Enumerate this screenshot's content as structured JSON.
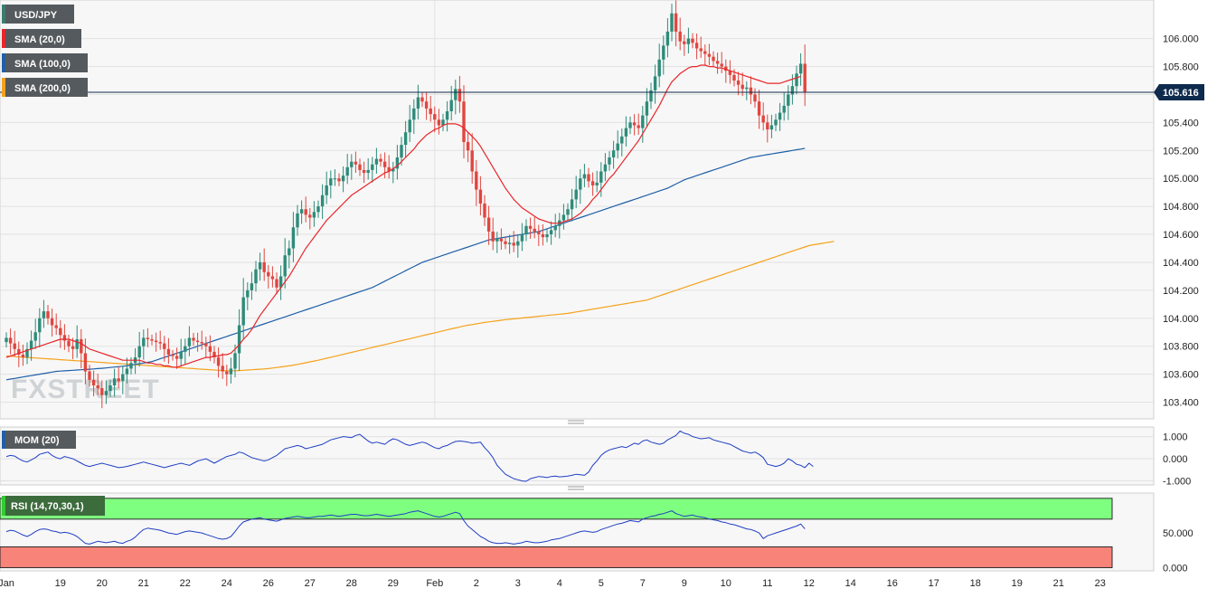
{
  "chart_data": {
    "type": "candlestick",
    "symbol": "USD/JPY",
    "watermark": "FXSTREET",
    "current_price": 105.616,
    "price_axis": {
      "ylim": [
        103.3,
        106.25
      ],
      "ticks": [
        "106.000",
        "105.800",
        "105.600",
        "105.400",
        "105.200",
        "105.000",
        "104.800",
        "104.600",
        "104.400",
        "104.200",
        "104.000",
        "103.800",
        "103.600",
        "103.400"
      ],
      "tick_values": [
        106.0,
        105.8,
        105.6,
        105.4,
        105.2,
        105.0,
        104.8,
        104.6,
        104.4,
        104.2,
        104.0,
        103.8,
        103.6,
        103.4
      ]
    },
    "x_axis": {
      "labels": [
        "Jan",
        "19",
        "20",
        "21",
        "22",
        "24",
        "26",
        "27",
        "28",
        "29",
        "Feb",
        "2",
        "3",
        "4",
        "5",
        "7",
        "9",
        "10",
        "11",
        "12",
        "14",
        "16",
        "17",
        "18",
        "19",
        "21",
        "23"
      ],
      "label_bars": [
        0,
        13,
        23,
        33,
        43,
        53,
        63,
        73,
        83,
        93,
        103,
        113,
        123,
        133,
        143,
        153,
        163,
        173,
        183,
        193,
        203,
        213,
        223,
        233,
        243,
        253,
        263
      ]
    },
    "legend": [
      {
        "label": "USD/JPY",
        "color": "#3a7d6e"
      },
      {
        "label": "SMA (20,0)",
        "color": "#e8262a"
      },
      {
        "label": "SMA (100,0)",
        "color": "#1f5fa8"
      },
      {
        "label": "SMA (200,0)",
        "color": "#f5a21b"
      }
    ],
    "colors": {
      "up": "#2e8b7a",
      "down": "#e0463f",
      "sma20": "#e8262a",
      "sma100": "#1f5fa8",
      "sma200": "#f5a21b",
      "last_line": "#0e2a4d"
    },
    "closes": [
      103.86,
      103.82,
      103.78,
      103.74,
      103.72,
      103.78,
      103.84,
      103.9,
      104.0,
      104.05,
      104.0,
      103.95,
      103.93,
      103.88,
      103.84,
      103.8,
      103.78,
      103.85,
      103.75,
      103.62,
      103.56,
      103.52,
      103.5,
      103.45,
      103.48,
      103.52,
      103.57,
      103.55,
      103.6,
      103.64,
      103.68,
      103.72,
      103.8,
      103.86,
      103.85,
      103.84,
      103.83,
      103.82,
      103.78,
      103.74,
      103.73,
      103.71,
      103.76,
      103.8,
      103.86,
      103.84,
      103.83,
      103.82,
      103.8,
      103.76,
      103.72,
      103.66,
      103.62,
      103.6,
      103.64,
      103.75,
      103.95,
      104.15,
      104.2,
      104.25,
      104.35,
      104.4,
      104.33,
      104.3,
      104.28,
      104.22,
      104.3,
      104.45,
      104.5,
      104.65,
      104.75,
      104.78,
      104.74,
      104.72,
      104.76,
      104.8,
      104.88,
      104.95,
      105.0,
      105.0,
      104.98,
      105.02,
      105.08,
      105.12,
      105.1,
      105.06,
      105.04,
      105.06,
      105.1,
      105.14,
      105.12,
      105.08,
      105.05,
      105.07,
      105.15,
      105.24,
      105.33,
      105.42,
      105.5,
      105.58,
      105.55,
      105.5,
      105.46,
      105.42,
      105.38,
      105.42,
      105.48,
      105.56,
      105.64,
      105.55,
      105.26,
      105.2,
      105.05,
      104.92,
      104.82,
      104.72,
      104.62,
      104.55,
      104.57,
      104.55,
      104.53,
      104.54,
      104.52,
      104.55,
      104.6,
      104.66,
      104.64,
      104.62,
      104.6,
      104.58,
      104.6,
      104.63,
      104.66,
      104.7,
      104.74,
      104.78,
      104.85,
      104.92,
      105.0,
      105.03,
      104.98,
      104.95,
      104.97,
      105.05,
      105.1,
      105.15,
      105.2,
      105.25,
      105.3,
      105.36,
      105.4,
      105.38,
      105.36,
      105.45,
      105.55,
      105.63,
      105.73,
      105.85,
      105.95,
      106.05,
      106.18,
      106.05,
      105.98,
      105.96,
      106.0,
      105.97,
      105.93,
      105.91,
      105.89,
      105.87,
      105.84,
      105.82,
      105.8,
      105.77,
      105.74,
      105.7,
      105.67,
      105.64,
      105.65,
      105.6,
      105.55,
      105.45,
      105.4,
      105.35,
      105.38,
      105.42,
      105.47,
      105.52,
      105.6,
      105.66,
      105.75,
      105.82,
      105.62
    ],
    "sma20": [
      103.72,
      103.73,
      103.74,
      103.75,
      103.76,
      103.77,
      103.78,
      103.79,
      103.8,
      103.81,
      103.82,
      103.83,
      103.84,
      103.85,
      103.85,
      103.85,
      103.84,
      103.83,
      103.82,
      103.8,
      103.78,
      103.77,
      103.76,
      103.75,
      103.74,
      103.73,
      103.72,
      103.71,
      103.7,
      103.7,
      103.7,
      103.7,
      103.7,
      103.69,
      103.68,
      103.68,
      103.67,
      103.67,
      103.66,
      103.66,
      103.65,
      103.65,
      103.66,
      103.67,
      103.68,
      103.69,
      103.7,
      103.71,
      103.72,
      103.72,
      103.73,
      103.73,
      103.74,
      103.74,
      103.75,
      103.78,
      103.81,
      103.85,
      103.88,
      103.92,
      103.97,
      104.02,
      104.06,
      104.1,
      104.14,
      104.18,
      104.22,
      104.26,
      104.3,
      104.35,
      104.4,
      104.45,
      104.5,
      104.54,
      104.58,
      104.62,
      104.66,
      104.7,
      104.73,
      104.76,
      104.79,
      104.82,
      104.85,
      104.88,
      104.9,
      104.92,
      104.94,
      104.96,
      104.98,
      105.0,
      105.02,
      105.04,
      105.05,
      105.07,
      105.09,
      105.12,
      105.15,
      105.18,
      105.21,
      105.25,
      105.28,
      105.31,
      105.33,
      105.35,
      105.36,
      105.38,
      105.39,
      105.39,
      105.39,
      105.38,
      105.36,
      105.33,
      105.3,
      105.27,
      105.23,
      105.18,
      105.13,
      105.08,
      105.03,
      104.98,
      104.93,
      104.89,
      104.85,
      104.82,
      104.79,
      104.77,
      104.75,
      104.73,
      104.71,
      104.7,
      104.69,
      104.68,
      104.68,
      104.68,
      104.69,
      104.7,
      104.71,
      104.73,
      104.75,
      104.78,
      104.81,
      104.85,
      104.88,
      104.92,
      104.96,
      105.0,
      105.03,
      105.07,
      105.11,
      105.15,
      105.19,
      105.23,
      105.27,
      105.32,
      105.37,
      105.42,
      105.47,
      105.52,
      105.58,
      105.64,
      105.69,
      105.72,
      105.75,
      105.77,
      105.79,
      105.8,
      105.8,
      105.81,
      105.81,
      105.8,
      105.8,
      105.79,
      105.79,
      105.78,
      105.77,
      105.76,
      105.75,
      105.74,
      105.73,
      105.72,
      105.71,
      105.7,
      105.69,
      105.68,
      105.68,
      105.68,
      105.68,
      105.69,
      105.7,
      105.71,
      105.72,
      105.73
    ],
    "sma100": [
      103.56,
      103.565,
      103.57,
      103.575,
      103.58,
      103.585,
      103.59,
      103.595,
      103.6,
      103.605,
      103.61,
      103.615,
      103.62,
      103.622,
      103.624,
      103.626,
      103.628,
      103.63,
      103.632,
      103.634,
      103.636,
      103.638,
      103.64,
      103.642,
      103.645,
      103.648,
      103.651,
      103.654,
      103.657,
      103.66,
      103.665,
      103.67,
      103.675,
      103.68,
      103.685,
      103.69,
      103.7,
      103.71,
      103.72,
      103.73,
      103.74,
      103.75,
      103.76,
      103.77,
      103.78,
      103.79,
      103.8,
      103.81,
      103.82,
      103.83,
      103.84,
      103.85,
      103.86,
      103.87,
      103.88,
      103.89,
      103.9,
      103.91,
      103.92,
      103.93,
      103.94,
      103.95,
      103.96,
      103.97,
      103.98,
      103.99,
      104.0,
      104.01,
      104.02,
      104.03,
      104.04,
      104.05,
      104.06,
      104.07,
      104.08,
      104.09,
      104.1,
      104.11,
      104.12,
      104.13,
      104.14,
      104.15,
      104.16,
      104.17,
      104.18,
      104.19,
      104.2,
      104.21,
      104.22,
      104.235,
      104.25,
      104.265,
      104.28,
      104.295,
      104.31,
      104.325,
      104.34,
      104.355,
      104.37,
      104.385,
      104.4,
      104.41,
      104.42,
      104.43,
      104.44,
      104.45,
      104.46,
      104.47,
      104.48,
      104.49,
      104.5,
      104.51,
      104.52,
      104.53,
      104.54,
      104.55,
      104.56,
      104.565,
      104.57,
      104.575,
      104.58,
      104.585,
      104.59,
      104.595,
      104.6,
      104.605,
      104.61,
      104.615,
      104.62,
      104.63,
      104.64,
      104.65,
      104.66,
      104.67,
      104.68,
      104.69,
      104.7,
      104.71,
      104.72,
      104.73,
      104.74,
      104.75,
      104.76,
      104.77,
      104.78,
      104.79,
      104.8,
      104.81,
      104.82,
      104.83,
      104.84,
      104.85,
      104.86,
      104.87,
      104.88,
      104.89,
      104.9,
      104.91,
      104.92,
      104.93,
      104.945,
      104.96,
      104.975,
      104.99,
      105.0,
      105.01,
      105.02,
      105.03,
      105.04,
      105.05,
      105.06,
      105.07,
      105.08,
      105.09,
      105.1,
      105.11,
      105.12,
      105.13,
      105.14,
      105.15,
      105.155,
      105.16,
      105.165,
      105.17,
      105.175,
      105.18,
      105.185,
      105.19,
      105.195,
      105.2,
      105.205,
      105.21,
      105.215
    ],
    "sma200": [
      103.73,
      103.728,
      103.726,
      103.724,
      103.722,
      103.72,
      103.718,
      103.716,
      103.714,
      103.712,
      103.71,
      103.708,
      103.706,
      103.704,
      103.702,
      103.7,
      103.698,
      103.696,
      103.694,
      103.692,
      103.69,
      103.688,
      103.686,
      103.684,
      103.682,
      103.68,
      103.678,
      103.676,
      103.674,
      103.672,
      103.67,
      103.668,
      103.666,
      103.664,
      103.662,
      103.66,
      103.658,
      103.656,
      103.654,
      103.652,
      103.65,
      103.648,
      103.646,
      103.644,
      103.642,
      103.64,
      103.638,
      103.636,
      103.634,
      103.632,
      103.63,
      103.628,
      103.626,
      103.625,
      103.625,
      103.625,
      103.626,
      103.628,
      103.63,
      103.632,
      103.634,
      103.636,
      103.638,
      103.64,
      103.644,
      103.648,
      103.652,
      103.656,
      103.66,
      103.665,
      103.67,
      103.676,
      103.682,
      103.688,
      103.694,
      103.7,
      103.707,
      103.714,
      103.721,
      103.728,
      103.735,
      103.742,
      103.749,
      103.756,
      103.763,
      103.77,
      103.777,
      103.784,
      103.791,
      103.798,
      103.805,
      103.812,
      103.819,
      103.826,
      103.833,
      103.84,
      103.847,
      103.854,
      103.861,
      103.868,
      103.875,
      103.882,
      103.889,
      103.896,
      103.903,
      103.91,
      103.917,
      103.924,
      103.931,
      103.938,
      103.945,
      103.95,
      103.955,
      103.96,
      103.965,
      103.97,
      103.974,
      103.978,
      103.982,
      103.986,
      103.99,
      103.993,
      103.996,
      103.999,
      104.002,
      104.005,
      104.008,
      104.011,
      104.014,
      104.017,
      104.02,
      104.023,
      104.026,
      104.029,
      104.032,
      104.035,
      104.04,
      104.045,
      104.05,
      104.055,
      104.06,
      104.065,
      104.07,
      104.075,
      104.08,
      104.085,
      104.09,
      104.095,
      104.1,
      104.105,
      104.11,
      104.115,
      104.12,
      104.125,
      104.13,
      104.14,
      104.15,
      104.16,
      104.17,
      104.18,
      104.19,
      104.2,
      104.21,
      104.22,
      104.23,
      104.24,
      104.25,
      104.26,
      104.27,
      104.28,
      104.29,
      104.3,
      104.31,
      104.32,
      104.33,
      104.34,
      104.35,
      104.36,
      104.37,
      104.38,
      104.39,
      104.4,
      104.41,
      104.42,
      104.43,
      104.44,
      104.45,
      104.46,
      104.47,
      104.48,
      104.49,
      104.5,
      104.51,
      104.52,
      104.525,
      104.53,
      104.535,
      104.54,
      104.545,
      104.55
    ],
    "momentum": {
      "label": "MOM (20)",
      "ticks": [
        "1.000",
        "0.000",
        "-1.000"
      ],
      "tick_values": [
        1,
        0,
        -1
      ],
      "ylim": [
        -1.1,
        1.35
      ],
      "values": [
        0.1,
        0.15,
        0.12,
        0.0,
        -0.1,
        -0.15,
        -0.05,
        0.05,
        0.2,
        0.25,
        0.3,
        0.15,
        0.05,
        0.0,
        0.1,
        0.05,
        0.0,
        -0.1,
        -0.2,
        -0.3,
        -0.35,
        -0.3,
        -0.25,
        -0.2,
        -0.25,
        -0.3,
        -0.35,
        -0.4,
        -0.38,
        -0.35,
        -0.3,
        -0.25,
        -0.2,
        -0.15,
        -0.2,
        -0.25,
        -0.3,
        -0.35,
        -0.4,
        -0.35,
        -0.3,
        -0.25,
        -0.2,
        -0.25,
        -0.3,
        -0.2,
        -0.1,
        -0.05,
        0.0,
        -0.1,
        -0.2,
        -0.1,
        0.0,
        0.1,
        0.15,
        0.2,
        0.3,
        0.25,
        0.15,
        0.05,
        0.0,
        -0.05,
        -0.1,
        -0.05,
        0.05,
        0.15,
        0.3,
        0.45,
        0.5,
        0.55,
        0.6,
        0.55,
        0.45,
        0.5,
        0.55,
        0.6,
        0.65,
        0.75,
        0.85,
        0.9,
        0.95,
        1.0,
        0.98,
        0.95,
        1.05,
        1.1,
        0.95,
        0.8,
        0.7,
        0.75,
        0.7,
        0.65,
        0.8,
        0.9,
        0.85,
        0.75,
        0.65,
        0.6,
        0.65,
        0.7,
        0.75,
        0.7,
        0.6,
        0.5,
        0.45,
        0.55,
        0.6,
        0.7,
        0.78,
        0.8,
        0.78,
        0.75,
        0.7,
        0.72,
        0.75,
        0.5,
        0.3,
        0.05,
        -0.3,
        -0.5,
        -0.7,
        -0.8,
        -0.9,
        -0.95,
        -1.0,
        -1.02,
        -0.9,
        -0.85,
        -0.8,
        -0.82,
        -0.85,
        -0.8,
        -0.78,
        -0.82,
        -0.8,
        -0.78,
        -0.75,
        -0.7,
        -0.72,
        -0.75,
        -0.6,
        -0.3,
        -0.1,
        0.15,
        0.3,
        0.4,
        0.45,
        0.5,
        0.55,
        0.5,
        0.6,
        0.7,
        0.65,
        0.8,
        0.85,
        0.75,
        0.7,
        0.65,
        0.7,
        0.85,
        0.95,
        1.05,
        1.25,
        1.15,
        1.1,
        1.0,
        0.95,
        0.9,
        0.92,
        0.95,
        0.85,
        0.8,
        0.75,
        0.7,
        0.65,
        0.55,
        0.45,
        0.35,
        0.3,
        0.25,
        0.3,
        0.2,
        0.05,
        -0.25,
        -0.3,
        -0.35,
        -0.3,
        -0.2,
        0.0,
        -0.1,
        -0.25,
        -0.3,
        -0.4,
        -0.2,
        -0.35
      ]
    },
    "rsi": {
      "label": "RSI (14,70,30,1)",
      "ticks": [
        "50.000",
        "0.000"
      ],
      "tick_values": [
        50,
        0
      ],
      "ylim": [
        -2,
        105
      ],
      "overbought": 70,
      "oversold": 30,
      "zone_colors": {
        "high": "#7fff7f",
        "low": "#f88379"
      },
      "values": [
        52,
        54,
        53,
        50,
        47,
        45,
        48,
        52,
        55,
        56,
        55,
        53,
        52,
        50,
        51,
        50,
        48,
        45,
        40,
        35,
        34,
        36,
        38,
        37,
        36,
        37,
        38,
        36,
        35,
        38,
        40,
        44,
        50,
        55,
        57,
        56,
        55,
        54,
        52,
        50,
        49,
        48,
        50,
        52,
        53,
        52,
        51,
        50,
        48,
        46,
        44,
        42,
        41,
        42,
        45,
        52,
        60,
        66,
        68,
        70,
        71,
        72,
        70,
        69,
        68,
        67,
        69,
        71,
        72,
        73,
        74,
        73,
        72,
        72,
        73,
        74,
        74,
        75,
        76,
        75,
        74,
        75,
        76,
        77,
        77,
        76,
        75,
        75,
        76,
        77,
        76,
        75,
        74,
        75,
        76,
        77,
        78,
        80,
        81,
        82,
        80,
        78,
        76,
        74,
        73,
        74,
        76,
        78,
        80,
        78,
        68,
        60,
        55,
        50,
        45,
        42,
        38,
        36,
        35,
        35,
        36,
        35,
        34,
        35,
        36,
        38,
        37,
        36,
        36,
        37,
        38,
        40,
        41,
        42,
        44,
        46,
        48,
        50,
        52,
        53,
        52,
        51,
        52,
        55,
        57,
        59,
        61,
        63,
        64,
        66,
        68,
        67,
        66,
        70,
        72,
        74,
        75,
        77,
        78,
        80,
        82,
        78,
        76,
        74,
        75,
        76,
        74,
        73,
        72,
        70,
        69,
        68,
        66,
        65,
        63,
        62,
        60,
        58,
        56,
        55,
        53,
        50,
        42,
        46,
        48,
        50,
        52,
        54,
        56,
        58,
        60,
        63,
        56
      ]
    }
  }
}
